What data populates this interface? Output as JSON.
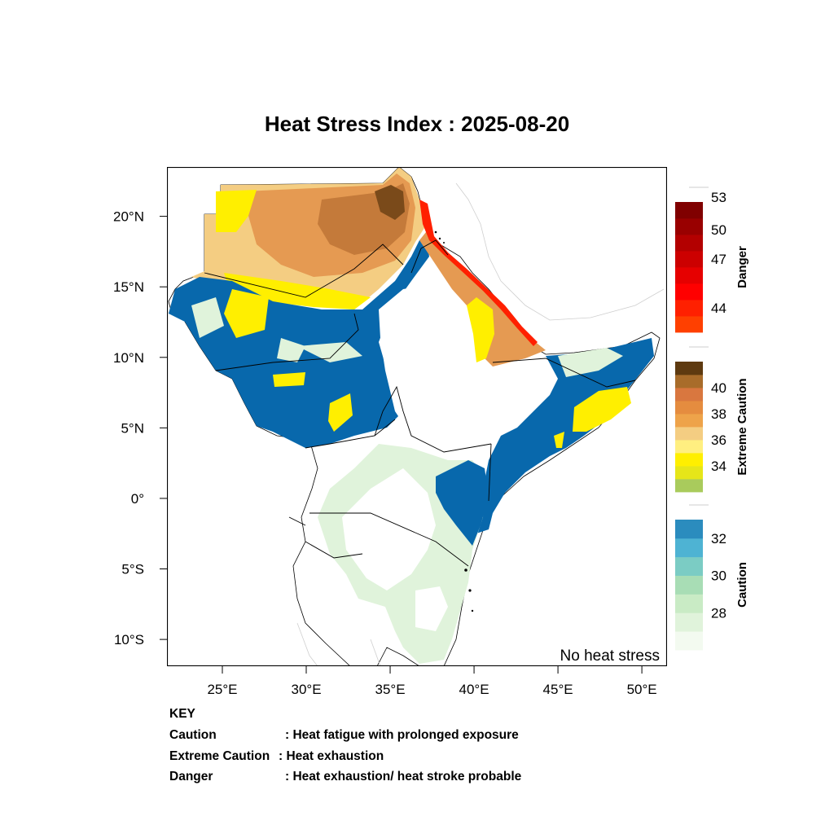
{
  "title": "Heat Stress Index : 2025-08-20",
  "corner_label": "No heat stress",
  "axes": {
    "lon_ticks": [
      {
        "lon": 25,
        "label": "25°E"
      },
      {
        "lon": 30,
        "label": "30°E"
      },
      {
        "lon": 35,
        "label": "35°E"
      },
      {
        "lon": 40,
        "label": "40°E"
      },
      {
        "lon": 45,
        "label": "45°E"
      },
      {
        "lon": 50,
        "label": "50°E"
      }
    ],
    "lat_ticks": [
      {
        "lat": 20,
        "label": "20°N"
      },
      {
        "lat": 15,
        "label": "15°N"
      },
      {
        "lat": 10,
        "label": "10°N"
      },
      {
        "lat": 5,
        "label": "5°N"
      },
      {
        "lat": 0,
        "label": "0°"
      },
      {
        "lat": -5,
        "label": "5°S"
      },
      {
        "lat": -10,
        "label": "10°S"
      }
    ],
    "lon_range": [
      21.7,
      51.5
    ],
    "lat_range": [
      -11.9,
      23.5
    ]
  },
  "legend": [
    {
      "name": "Danger",
      "colors": [
        "#ff4000",
        "#ff2000",
        "#ff0000",
        "#e60000",
        "#cc0000",
        "#b30000",
        "#990000",
        "#800000"
      ],
      "labels": [
        {
          "pos": 1.5,
          "text": "44"
        },
        {
          "pos": 4.5,
          "text": "47"
        },
        {
          "pos": 6.3,
          "text": "50"
        },
        {
          "pos": 8.3,
          "text": "53"
        }
      ]
    },
    {
      "name": "Extreme Caution",
      "colors": [
        "#a9cb5c",
        "#e6e619",
        "#ffef00",
        "#ffef80",
        "#f4cd82",
        "#eea34a",
        "#e58c3f",
        "#d9773f",
        "#a86c2a",
        "#5e3a10"
      ],
      "labels": [
        {
          "pos": 2,
          "text": "34"
        },
        {
          "pos": 4,
          "text": "36"
        },
        {
          "pos": 6,
          "text": "38"
        },
        {
          "pos": 8,
          "text": "40"
        }
      ]
    },
    {
      "name": "Caution",
      "colors": [
        "#f3faf0",
        "#e0f3db",
        "#c9ebc5",
        "#a8ddb5",
        "#7bccc4",
        "#4eb3d3",
        "#2b8cbe"
      ],
      "labels": [
        {
          "pos": 2,
          "text": "28"
        },
        {
          "pos": 4,
          "text": "30"
        },
        {
          "pos": 6,
          "text": "32"
        }
      ]
    }
  ],
  "key": {
    "heading": "KEY",
    "rows": [
      {
        "term": "Caution",
        "desc": ": Heat fatigue with prolonged exposure"
      },
      {
        "term": "Extreme Caution",
        "desc": " : Heat exhaustion"
      },
      {
        "term": "Danger",
        "desc": ": Heat exhaustion/ heat stroke probable"
      }
    ]
  },
  "colors": {
    "no_stress": "#ffffff",
    "caution_high": "#0868ac",
    "caution_light": "#e0f3db",
    "caution_mid": "#a8ddb5",
    "ext_yellow": "#ffef00",
    "ext_light": "#f4cd82",
    "ext_orange": "#e59a52",
    "ext_dark": "#c47a3a",
    "ext_darkest": "#7a4a1a",
    "danger": "#ff2000",
    "border": "#000000"
  }
}
